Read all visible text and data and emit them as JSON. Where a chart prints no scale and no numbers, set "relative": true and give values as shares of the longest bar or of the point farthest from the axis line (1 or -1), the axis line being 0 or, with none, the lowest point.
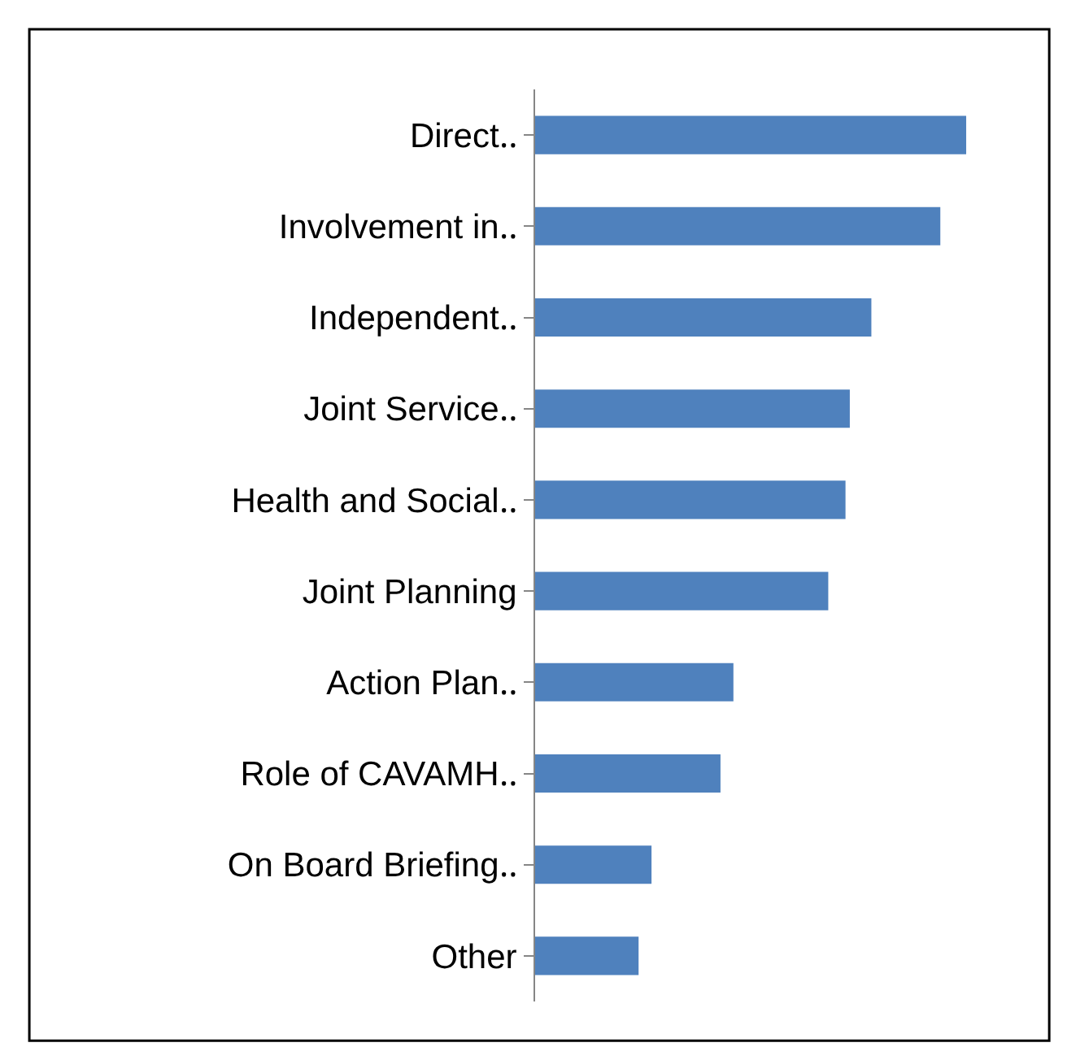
{
  "chart_data": {
    "type": "bar",
    "orientation": "horizontal",
    "relative": true,
    "categories": [
      "Direct‥",
      "Involvement in‥",
      "Independent‥",
      "Joint Service‥",
      "Health and Social‥",
      "Joint Planning",
      "Action Plan‥",
      "Role of CAVAMH‥",
      "On Board Briefing‥",
      "Other"
    ],
    "values": [
      1,
      0.94,
      0.78,
      0.73,
      0.72,
      0.68,
      0.46,
      0.43,
      0.27,
      0.24
    ],
    "color": "#4f81bd",
    "legend": false
  }
}
